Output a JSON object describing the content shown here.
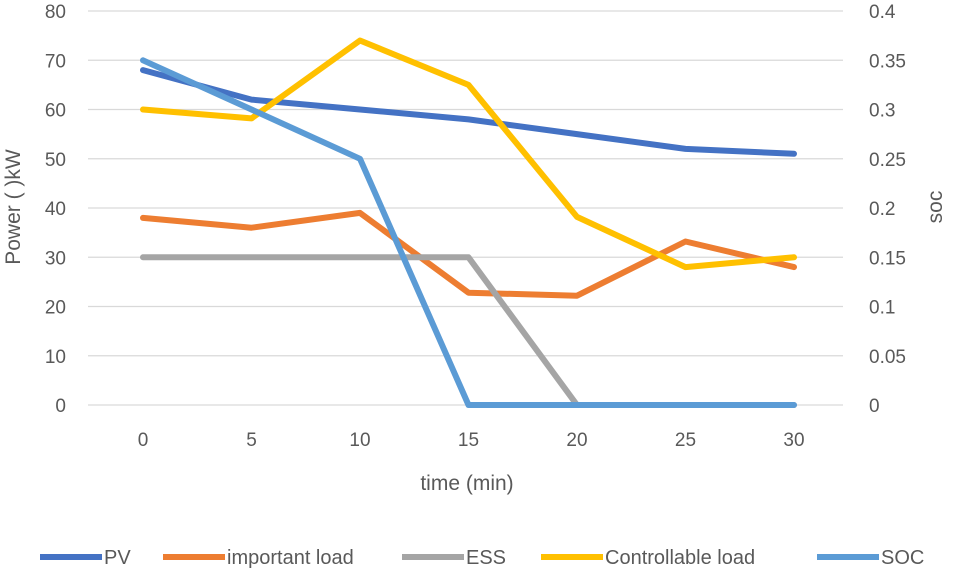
{
  "chart_data": {
    "type": "line",
    "title": "",
    "xlabel": "time (min)",
    "ylabel": "Power ( )kW",
    "y2label": "soc",
    "x": [
      0,
      5,
      10,
      15,
      20,
      25,
      30
    ],
    "x_ticks": [
      "0",
      "5",
      "10",
      "15",
      "20",
      "25",
      "30"
    ],
    "ylim": [
      0,
      80
    ],
    "y_ticks": [
      "0",
      "10",
      "20",
      "30",
      "40",
      "50",
      "60",
      "70",
      "80"
    ],
    "y2lim": [
      0,
      0.4
    ],
    "y2_ticks": [
      "0",
      "0.05",
      "0.1",
      "0.15",
      "0.2",
      "0.25",
      "0.3",
      "0.35",
      "0.4"
    ],
    "grid": true,
    "legend_position": "bottom",
    "series": [
      {
        "name": "PV",
        "axis": "left",
        "color": "#4472C4",
        "values": [
          68,
          62,
          60,
          58,
          55,
          52,
          51
        ]
      },
      {
        "name": "important load",
        "axis": "left",
        "color": "#ED7D31",
        "values": [
          38,
          36,
          39,
          22.8,
          22.2,
          33.2,
          28
        ]
      },
      {
        "name": "ESS",
        "axis": "left",
        "color": "#A5A5A5",
        "values": [
          30,
          30,
          30,
          30,
          0,
          0,
          0
        ]
      },
      {
        "name": "Controllable load",
        "axis": "left",
        "color": "#FFC000",
        "values": [
          60,
          58.2,
          74,
          65,
          38.2,
          28,
          30
        ]
      },
      {
        "name": "SOC",
        "axis": "right",
        "color": "#5B9BD5",
        "values": [
          0.35,
          0.3,
          0.25,
          0,
          0,
          0,
          0
        ]
      }
    ]
  }
}
